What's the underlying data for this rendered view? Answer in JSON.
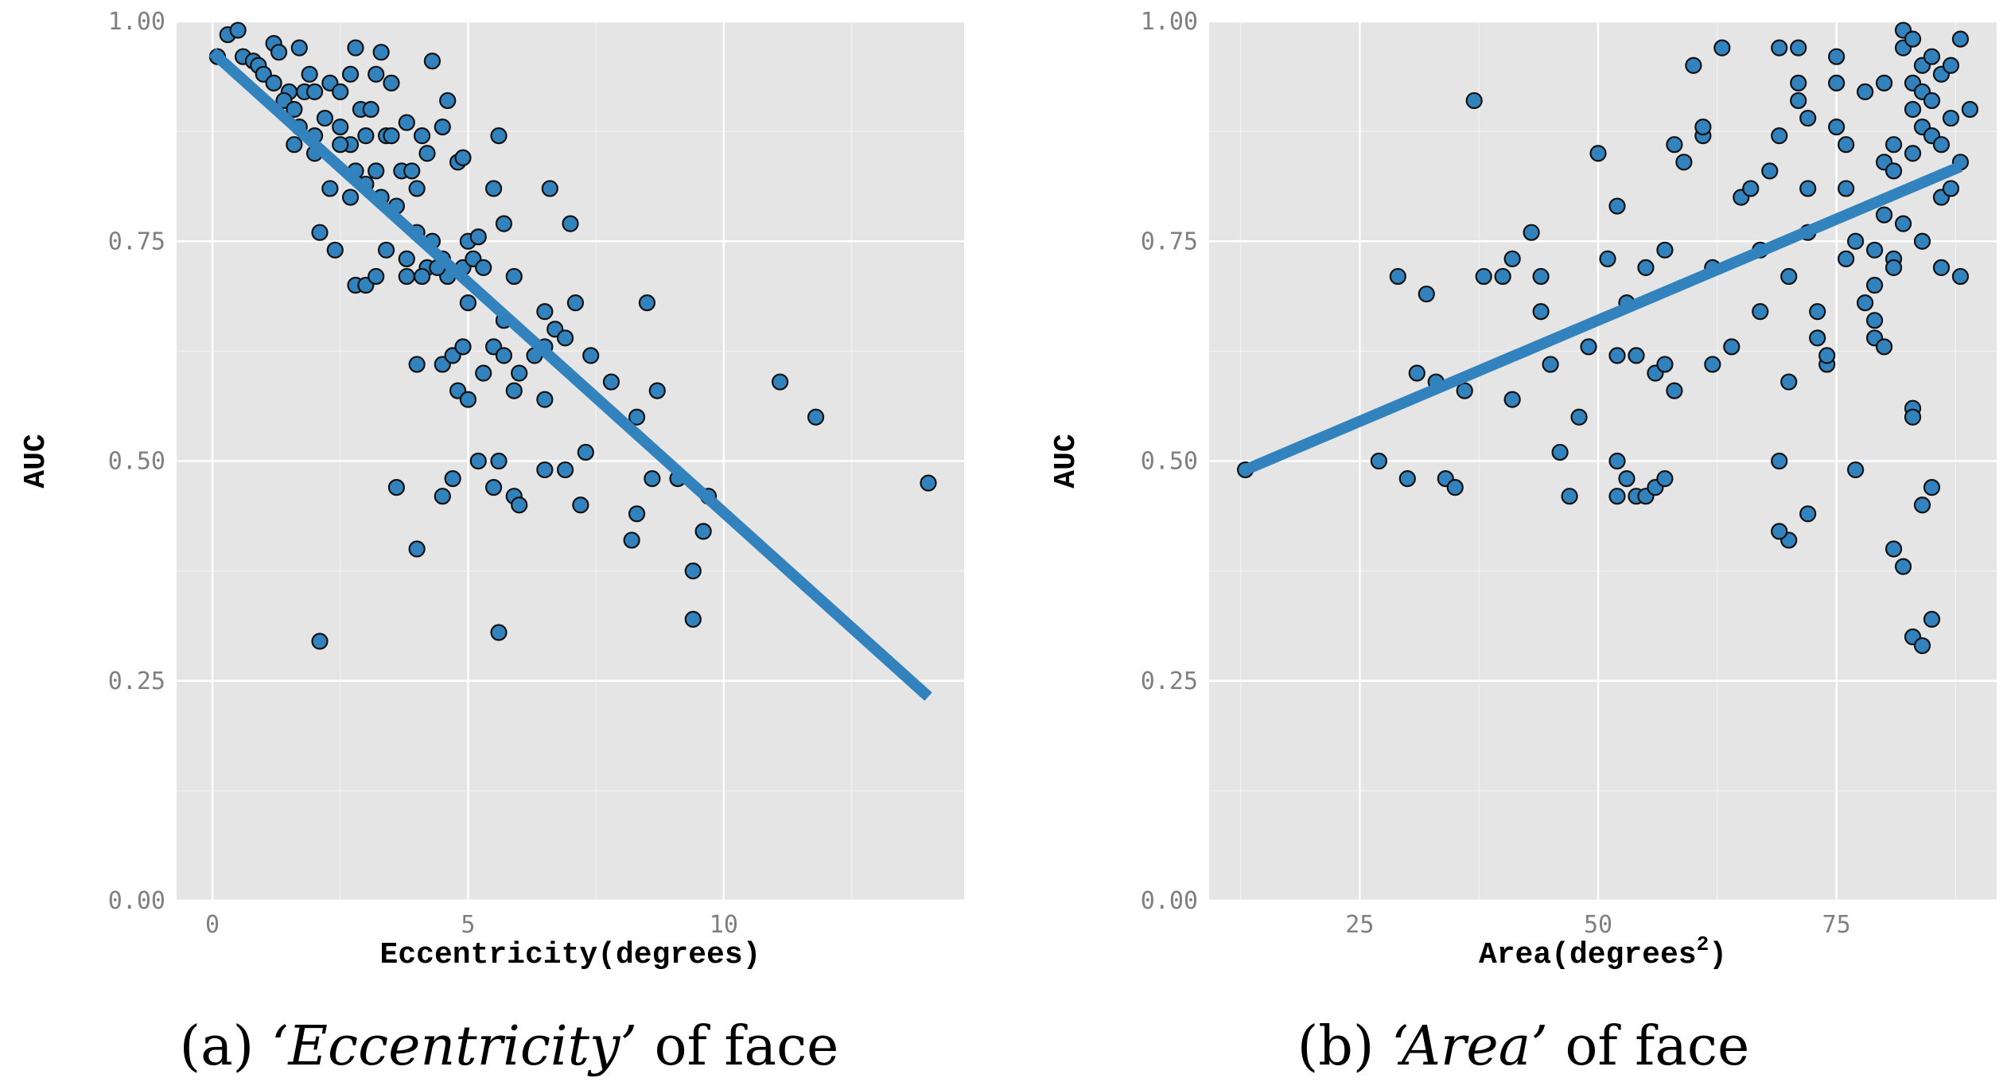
{
  "chart_data": [
    {
      "type": "scatter",
      "xlabel": "Eccentricity(degrees)",
      "ylabel": "AUC",
      "caption_prefix": "(a) ",
      "caption_emph": "‘Eccentricity’",
      "caption_suffix": " of face",
      "xlim": [
        -0.7,
        14.7
      ],
      "ylim": [
        0,
        1
      ],
      "xticks": [
        0,
        5,
        10
      ],
      "xtick_labels": [
        "0",
        "5",
        "10"
      ],
      "yticks": [
        0,
        0.25,
        0.5,
        0.75,
        1
      ],
      "ytick_labels": [
        "0.00",
        "0.25",
        "0.50",
        "0.75",
        "1.00"
      ],
      "grid": true,
      "point_color": "#3182bd",
      "line_color": "#3182bd",
      "fit_line": {
        "x": [
          0,
          14.0
        ],
        "y": [
          0.965,
          0.232
        ]
      },
      "points": [
        [
          0.1,
          0.96
        ],
        [
          0.3,
          0.985
        ],
        [
          0.5,
          0.99
        ],
        [
          0.6,
          0.96
        ],
        [
          0.8,
          0.955
        ],
        [
          0.9,
          0.95
        ],
        [
          1.0,
          0.94
        ],
        [
          1.2,
          0.975
        ],
        [
          1.3,
          0.965
        ],
        [
          1.2,
          0.93
        ],
        [
          1.5,
          0.92
        ],
        [
          1.4,
          0.91
        ],
        [
          1.7,
          0.97
        ],
        [
          1.6,
          0.9
        ],
        [
          1.8,
          0.92
        ],
        [
          1.9,
          0.94
        ],
        [
          2.0,
          0.92
        ],
        [
          1.7,
          0.88
        ],
        [
          1.6,
          0.86
        ],
        [
          2.0,
          0.87
        ],
        [
          2.2,
          0.89
        ],
        [
          2.3,
          0.93
        ],
        [
          2.5,
          0.92
        ],
        [
          2.5,
          0.88
        ],
        [
          2.7,
          0.94
        ],
        [
          2.8,
          0.97
        ],
        [
          2.9,
          0.9
        ],
        [
          2.7,
          0.86
        ],
        [
          3.0,
          0.87
        ],
        [
          3.1,
          0.9
        ],
        [
          3.2,
          0.94
        ],
        [
          3.3,
          0.965
        ],
        [
          3.4,
          0.87
        ],
        [
          3.5,
          0.93
        ],
        [
          2.0,
          0.85
        ],
        [
          2.3,
          0.81
        ],
        [
          2.5,
          0.86
        ],
        [
          2.7,
          0.8
        ],
        [
          2.8,
          0.83
        ],
        [
          3.0,
          0.815
        ],
        [
          3.2,
          0.83
        ],
        [
          3.3,
          0.8
        ],
        [
          3.5,
          0.87
        ],
        [
          3.6,
          0.79
        ],
        [
          3.7,
          0.83
        ],
        [
          3.8,
          0.885
        ],
        [
          3.9,
          0.83
        ],
        [
          4.0,
          0.81
        ],
        [
          4.1,
          0.87
        ],
        [
          4.2,
          0.85
        ],
        [
          4.3,
          0.955
        ],
        [
          4.5,
          0.88
        ],
        [
          4.6,
          0.91
        ],
        [
          4.8,
          0.84
        ],
        [
          4.9,
          0.845
        ],
        [
          4.0,
          0.76
        ],
        [
          4.2,
          0.72
        ],
        [
          4.3,
          0.75
        ],
        [
          4.5,
          0.73
        ],
        [
          4.6,
          0.71
        ],
        [
          4.9,
          0.72
        ],
        [
          5.0,
          0.75
        ],
        [
          5.1,
          0.73
        ],
        [
          5.2,
          0.755
        ],
        [
          5.5,
          0.81
        ],
        [
          5.6,
          0.87
        ],
        [
          5.7,
          0.77
        ],
        [
          2.1,
          0.76
        ],
        [
          2.4,
          0.74
        ],
        [
          2.8,
          0.7
        ],
        [
          3.0,
          0.7
        ],
        [
          3.2,
          0.71
        ],
        [
          3.4,
          0.74
        ],
        [
          3.8,
          0.73
        ],
        [
          3.8,
          0.71
        ],
        [
          4.1,
          0.71
        ],
        [
          4.4,
          0.72
        ],
        [
          5.0,
          0.68
        ],
        [
          5.3,
          0.72
        ],
        [
          5.7,
          0.66
        ],
        [
          5.9,
          0.71
        ],
        [
          6.5,
          0.67
        ],
        [
          6.6,
          0.81
        ],
        [
          7.0,
          0.77
        ],
        [
          7.1,
          0.68
        ],
        [
          7.4,
          0.62
        ],
        [
          4.0,
          0.61
        ],
        [
          4.5,
          0.61
        ],
        [
          4.7,
          0.62
        ],
        [
          4.8,
          0.58
        ],
        [
          4.9,
          0.63
        ],
        [
          5.0,
          0.57
        ],
        [
          5.3,
          0.6
        ],
        [
          5.5,
          0.63
        ],
        [
          5.7,
          0.62
        ],
        [
          5.9,
          0.58
        ],
        [
          6.0,
          0.6
        ],
        [
          6.3,
          0.62
        ],
        [
          6.5,
          0.63
        ],
        [
          6.7,
          0.65
        ],
        [
          6.9,
          0.64
        ],
        [
          6.5,
          0.57
        ],
        [
          7.8,
          0.59
        ],
        [
          8.3,
          0.55
        ],
        [
          8.5,
          0.68
        ],
        [
          8.7,
          0.58
        ],
        [
          3.6,
          0.47
        ],
        [
          4.0,
          0.4
        ],
        [
          4.5,
          0.46
        ],
        [
          4.7,
          0.48
        ],
        [
          5.2,
          0.5
        ],
        [
          5.5,
          0.47
        ],
        [
          5.6,
          0.5
        ],
        [
          5.9,
          0.46
        ],
        [
          6.0,
          0.45
        ],
        [
          6.5,
          0.49
        ],
        [
          6.9,
          0.49
        ],
        [
          7.2,
          0.45
        ],
        [
          7.3,
          0.51
        ],
        [
          8.2,
          0.41
        ],
        [
          8.3,
          0.44
        ],
        [
          8.6,
          0.48
        ],
        [
          9.1,
          0.48
        ],
        [
          9.6,
          0.42
        ],
        [
          9.7,
          0.46
        ],
        [
          9.4,
          0.375
        ],
        [
          9.4,
          0.32
        ],
        [
          2.1,
          0.295
        ],
        [
          5.6,
          0.305
        ],
        [
          11.1,
          0.59
        ],
        [
          11.8,
          0.55
        ],
        [
          14.0,
          0.475
        ]
      ]
    },
    {
      "type": "scatter",
      "xlabel": "Area(degrees",
      "xlabel_sup": "2",
      "xlabel_close": ")",
      "ylabel": "AUC",
      "caption_prefix": "(b) ",
      "caption_emph": "‘Area’",
      "caption_suffix": " of face",
      "xlim": [
        9.2,
        91.8
      ],
      "ylim": [
        0,
        1
      ],
      "xticks": [
        25,
        50,
        75
      ],
      "xtick_labels": [
        "25",
        "50",
        "75"
      ],
      "yticks": [
        0,
        0.25,
        0.5,
        0.75,
        1
      ],
      "ytick_labels": [
        "0.00",
        "0.25",
        "0.50",
        "0.75",
        "1.00"
      ],
      "grid": true,
      "point_color": "#3182bd",
      "line_color": "#3182bd",
      "fit_line": {
        "x": [
          13,
          88
        ],
        "y": [
          0.49,
          0.835
        ]
      },
      "points": [
        [
          13,
          0.49
        ],
        [
          27,
          0.5
        ],
        [
          29,
          0.71
        ],
        [
          30,
          0.48
        ],
        [
          31,
          0.6
        ],
        [
          32,
          0.69
        ],
        [
          33,
          0.59
        ],
        [
          34,
          0.48
        ],
        [
          35,
          0.47
        ],
        [
          36,
          0.58
        ],
        [
          37,
          0.91
        ],
        [
          38,
          0.71
        ],
        [
          40,
          0.71
        ],
        [
          41,
          0.57
        ],
        [
          41,
          0.73
        ],
        [
          43,
          0.76
        ],
        [
          44,
          0.71
        ],
        [
          44,
          0.67
        ],
        [
          45,
          0.61
        ],
        [
          46,
          0.51
        ],
        [
          47,
          0.46
        ],
        [
          48,
          0.55
        ],
        [
          49,
          0.63
        ],
        [
          50,
          0.85
        ],
        [
          51,
          0.73
        ],
        [
          52,
          0.62
        ],
        [
          52,
          0.79
        ],
        [
          53,
          0.68
        ],
        [
          54,
          0.62
        ],
        [
          55,
          0.72
        ],
        [
          52,
          0.5
        ],
        [
          52,
          0.46
        ],
        [
          53,
          0.48
        ],
        [
          54,
          0.46
        ],
        [
          55,
          0.46
        ],
        [
          56,
          0.6
        ],
        [
          57,
          0.61
        ],
        [
          56,
          0.47
        ],
        [
          57,
          0.48
        ],
        [
          57,
          0.74
        ],
        [
          58,
          0.58
        ],
        [
          58,
          0.86
        ],
        [
          59,
          0.84
        ],
        [
          60,
          0.95
        ],
        [
          61,
          0.87
        ],
        [
          61,
          0.88
        ],
        [
          62,
          0.61
        ],
        [
          62,
          0.72
        ],
        [
          63,
          0.97
        ],
        [
          64,
          0.63
        ],
        [
          65,
          0.8
        ],
        [
          66,
          0.81
        ],
        [
          67,
          0.74
        ],
        [
          67,
          0.67
        ],
        [
          68,
          0.83
        ],
        [
          69,
          0.97
        ],
        [
          69,
          0.87
        ],
        [
          70,
          0.71
        ],
        [
          71,
          0.91
        ],
        [
          71,
          0.93
        ],
        [
          71,
          0.97
        ],
        [
          72,
          0.81
        ],
        [
          72,
          0.89
        ],
        [
          72,
          0.76
        ],
        [
          73,
          0.67
        ],
        [
          73,
          0.64
        ],
        [
          74,
          0.61
        ],
        [
          74,
          0.62
        ],
        [
          75,
          0.88
        ],
        [
          75,
          0.93
        ],
        [
          75,
          0.96
        ],
        [
          76,
          0.86
        ],
        [
          76,
          0.81
        ],
        [
          76,
          0.73
        ],
        [
          77,
          0.75
        ],
        [
          78,
          0.68
        ],
        [
          78,
          0.92
        ],
        [
          79,
          0.74
        ],
        [
          79,
          0.7
        ],
        [
          79,
          0.66
        ],
        [
          80,
          0.78
        ],
        [
          80,
          0.84
        ],
        [
          80,
          0.93
        ],
        [
          81,
          0.83
        ],
        [
          81,
          0.86
        ],
        [
          81,
          0.73
        ],
        [
          82,
          0.97
        ],
        [
          82,
          0.99
        ],
        [
          83,
          0.98
        ],
        [
          83,
          0.93
        ],
        [
          83,
          0.9
        ],
        [
          83,
          0.85
        ],
        [
          84,
          0.95
        ],
        [
          84,
          0.88
        ],
        [
          84,
          0.92
        ],
        [
          85,
          0.96
        ],
        [
          85,
          0.91
        ],
        [
          85,
          0.87
        ],
        [
          86,
          0.94
        ],
        [
          86,
          0.86
        ],
        [
          86,
          0.8
        ],
        [
          87,
          0.89
        ],
        [
          87,
          0.95
        ],
        [
          88,
          0.98
        ],
        [
          88,
          0.84
        ],
        [
          89,
          0.9
        ],
        [
          88,
          0.71
        ],
        [
          87,
          0.81
        ],
        [
          79,
          0.64
        ],
        [
          80,
          0.63
        ],
        [
          81,
          0.4
        ],
        [
          82,
          0.38
        ],
        [
          83,
          0.3
        ],
        [
          84,
          0.29
        ],
        [
          84,
          0.45
        ],
        [
          85,
          0.47
        ],
        [
          85,
          0.32
        ],
        [
          83,
          0.56
        ],
        [
          83,
          0.55
        ],
        [
          77,
          0.49
        ],
        [
          72,
          0.44
        ],
        [
          70,
          0.41
        ],
        [
          69,
          0.5
        ],
        [
          69,
          0.42
        ],
        [
          70,
          0.59
        ],
        [
          82,
          0.77
        ],
        [
          84,
          0.75
        ],
        [
          86,
          0.72
        ],
        [
          81,
          0.72
        ]
      ]
    }
  ]
}
